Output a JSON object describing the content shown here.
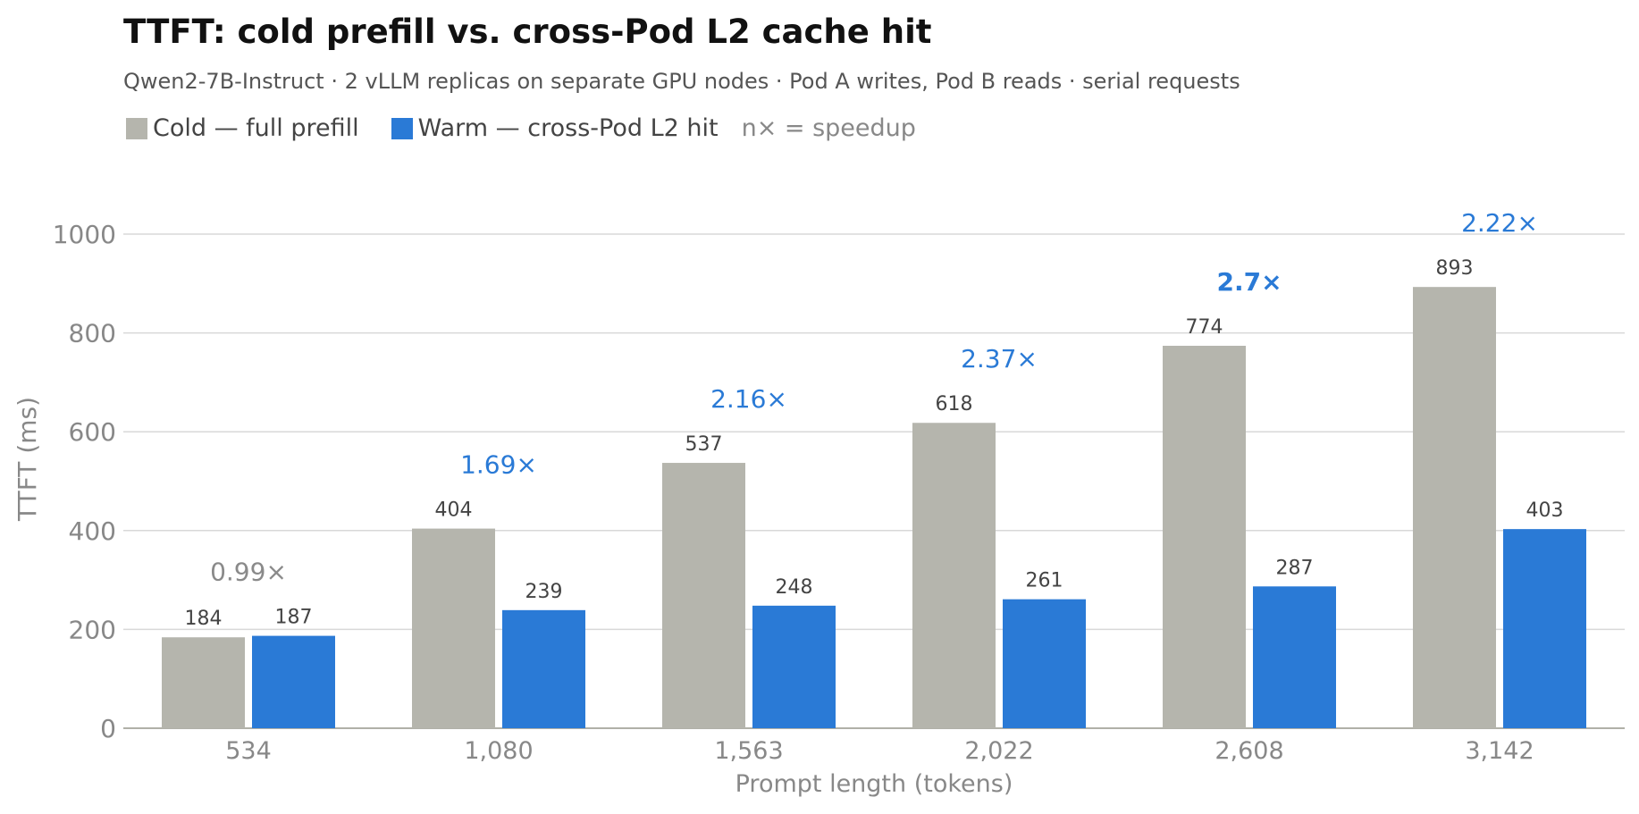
{
  "header": {
    "title": "TTFT: cold prefill vs. cross-Pod L2 cache hit",
    "subtitle": "Qwen2-7B-Instruct · 2 vLLM replicas on separate GPU nodes · Pod A writes, Pod B reads · serial requests"
  },
  "legend": {
    "cold_label": "Cold — full prefill",
    "warm_label": "Warm — cross-Pod L2 hit",
    "note": "n× = speedup"
  },
  "colors": {
    "cold": "#b5b5ad",
    "warm": "#2a7ad6",
    "speedup": "#2a7ad6",
    "speedup_muted": "#8a8a8a",
    "grid": "#d8d8d8",
    "axis_text": "#888888",
    "value_text": "#444444"
  },
  "chart_data": {
    "type": "bar",
    "title": "TTFT: cold prefill vs. cross-Pod L2 cache hit",
    "subtitle": "Qwen2-7B-Instruct · 2 vLLM replicas on separate GPU nodes · Pod A writes, Pod B reads · serial requests",
    "xlabel": "Prompt length (tokens)",
    "ylabel": "TTFT (ms)",
    "ylim": [
      0,
      1000
    ],
    "yticks": [
      0,
      200,
      400,
      600,
      800,
      1000
    ],
    "grid": true,
    "legend_position": "top-left",
    "categories": [
      "534",
      "1,080",
      "1,563",
      "2,022",
      "2,608",
      "3,142"
    ],
    "series": [
      {
        "name": "Cold — full prefill",
        "values": [
          184,
          404,
          537,
          618,
          774,
          893
        ]
      },
      {
        "name": "Warm — cross-Pod L2 hit",
        "values": [
          187,
          239,
          248,
          261,
          287,
          403
        ]
      }
    ],
    "speedup_labels": [
      "0.99×",
      "1.69×",
      "2.16×",
      "2.37×",
      "2.7×",
      "2.22×"
    ],
    "speedup_highlight": "2.7×"
  }
}
